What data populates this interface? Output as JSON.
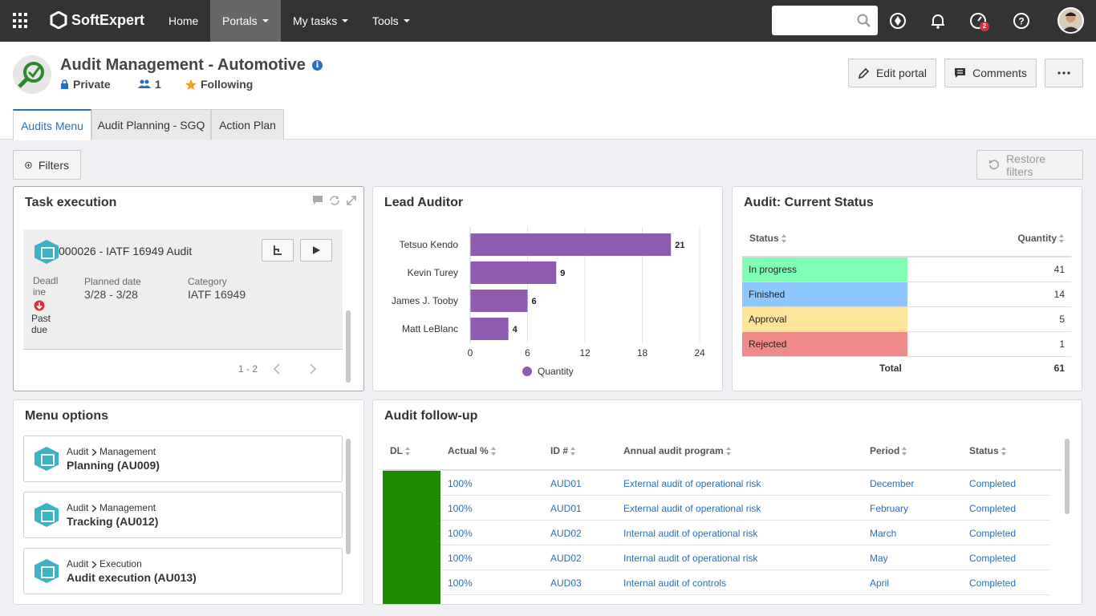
{
  "topbar": {
    "logo_text": "SoftExpert",
    "nav": [
      {
        "label": "Home"
      },
      {
        "label": "Portals"
      },
      {
        "label": "My tasks"
      },
      {
        "label": "Tools"
      }
    ],
    "search_placeholder": "",
    "notification_badge": "2"
  },
  "header": {
    "title": "Audit Management - Automotive",
    "privacy": "Private",
    "members": "1",
    "following": "Following",
    "edit_label": "Edit portal",
    "comments_label": "Comments"
  },
  "tabs": [
    {
      "label": "Audits Menu",
      "active": true
    },
    {
      "label": "Audit Planning - SGQ",
      "active": false
    },
    {
      "label": "Action Plan",
      "active": false
    }
  ],
  "filters": {
    "label": "Filters",
    "restore_label": "Restore filters"
  },
  "task_execution": {
    "title": "Task execution",
    "task": {
      "name": "000026 - IATF 16949 Audit",
      "deadline_label": "Deadl ine",
      "deadline_status": "Past due",
      "planned_label": "Planned date",
      "planned_value": "3/28 - 3/28",
      "category_label": "Category",
      "category_value": "IATF 16949"
    },
    "pagination": "1 - 2"
  },
  "lead_auditor": {
    "title": "Lead Auditor",
    "legend": "Quantity"
  },
  "chart_data": {
    "type": "bar",
    "orientation": "horizontal",
    "title": "Lead Auditor",
    "categories": [
      "Tetsuo Kendo",
      "Kevin Turey",
      "James J. Tooby",
      "Matt LeBlanc"
    ],
    "series": [
      {
        "name": "Quantity",
        "values": [
          21,
          9,
          6,
          4
        ],
        "color": "#8e5bb0"
      }
    ],
    "xlim": [
      0,
      24
    ],
    "xticks": [
      0,
      6,
      12,
      18,
      24
    ],
    "grid": true,
    "legend": "bottom"
  },
  "audit_status": {
    "title": "Audit: Current Status",
    "col_status": "Status",
    "col_quantity": "Quantity",
    "rows": [
      {
        "status": "In progress",
        "qty": "41",
        "color": "#80ffb4"
      },
      {
        "status": "Finished",
        "qty": "14",
        "color": "#8ec6ff"
      },
      {
        "status": "Approval",
        "qty": "5",
        "color": "#ffe59a"
      },
      {
        "status": "Rejected",
        "qty": "1",
        "color": "#f08a8a"
      }
    ],
    "total_label": "Total",
    "total_value": "61"
  },
  "menu_options": {
    "title": "Menu options",
    "items": [
      {
        "path_a": "Audit",
        "path_b": "Management",
        "name": "Planning (AU009)"
      },
      {
        "path_a": "Audit",
        "path_b": "Management",
        "name": "Tracking (AU012)"
      },
      {
        "path_a": "Audit",
        "path_b": "Execution",
        "name": "Audit execution (AU013)"
      }
    ]
  },
  "follow_up": {
    "title": "Audit follow-up",
    "headers": [
      "DL",
      "Actual %",
      "ID #",
      "Annual audit program",
      "Period",
      "Status"
    ],
    "dl_color": "#1e8a00",
    "rows": [
      {
        "actual": "100%",
        "id": "AUD01",
        "program": "External audit of operational risk",
        "period": "December",
        "status": "Completed"
      },
      {
        "actual": "100%",
        "id": "AUD01",
        "program": "External audit of operational risk",
        "period": "February",
        "status": "Completed"
      },
      {
        "actual": "100%",
        "id": "AUD02",
        "program": "Internal audit of operational risk",
        "period": "March",
        "status": "Completed"
      },
      {
        "actual": "100%",
        "id": "AUD02",
        "program": "Internal audit of operational risk",
        "period": "May",
        "status": "Completed"
      },
      {
        "actual": "100%",
        "id": "AUD03",
        "program": "Internal audit of controls",
        "period": "April",
        "status": "Completed"
      }
    ]
  }
}
